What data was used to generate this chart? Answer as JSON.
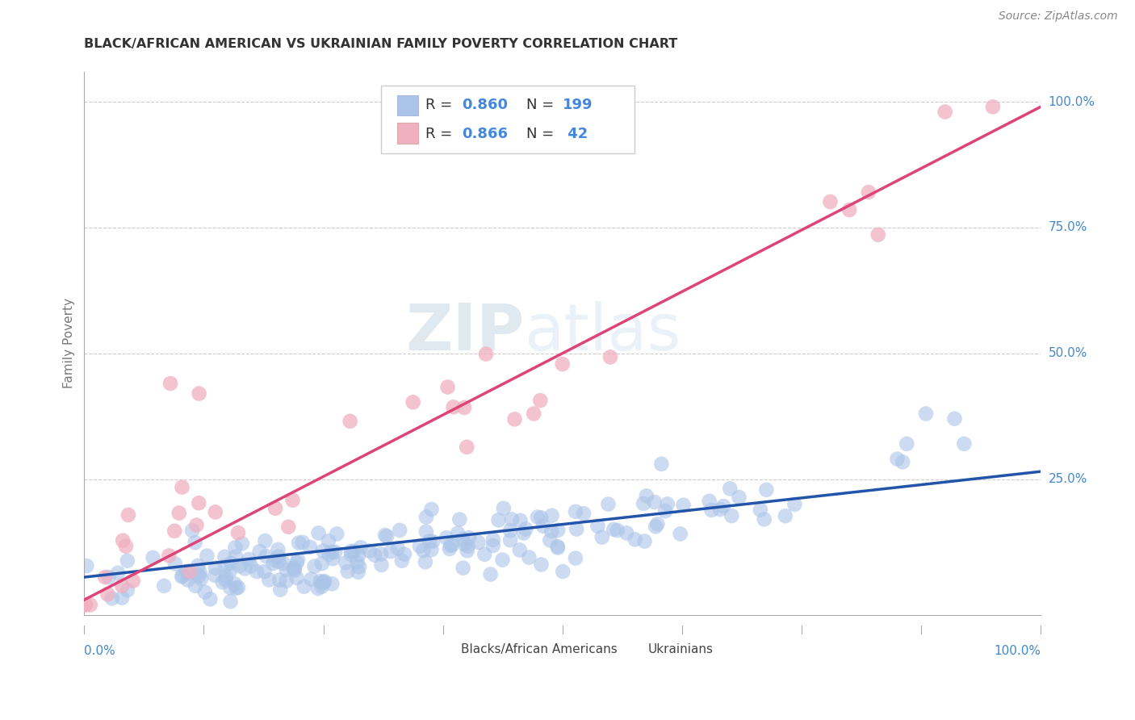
{
  "title": "BLACK/AFRICAN AMERICAN VS UKRAINIAN FAMILY POVERTY CORRELATION CHART",
  "source_text": "Source: ZipAtlas.com",
  "ylabel": "Family Poverty",
  "watermark_zip": "ZIP",
  "watermark_atlas": "atlas",
  "blue_R": "0.860",
  "blue_N": "199",
  "pink_R": "0.866",
  "pink_N": " 42",
  "blue_scatter_color": "#aac4e8",
  "blue_line_color": "#2255aa",
  "pink_scatter_color": "#f0b0c0",
  "pink_line_color": "#dd4477",
  "legend_label_color": "#333333",
  "legend_value_color": "#4488dd",
  "background_color": "#ffffff",
  "grid_color": "#cccccc",
  "title_color": "#333333",
  "ytick_color": "#4488cc",
  "source_color": "#888888",
  "ylabel_color": "#777777",
  "bottom_legend_color": "#444444"
}
